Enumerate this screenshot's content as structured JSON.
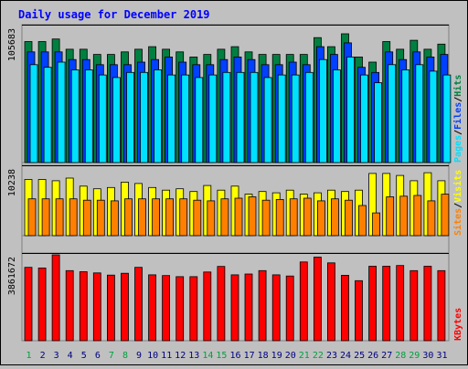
{
  "chart_data": {
    "type": "bar",
    "title": "Daily usage for December 2019",
    "categories": [
      "1",
      "2",
      "3",
      "4",
      "5",
      "6",
      "7",
      "8",
      "9",
      "10",
      "11",
      "12",
      "13",
      "14",
      "15",
      "16",
      "17",
      "18",
      "19",
      "20",
      "21",
      "22",
      "23",
      "24",
      "25",
      "26",
      "27",
      "28",
      "29",
      "30",
      "31"
    ],
    "weekend_days": [
      "1",
      "7",
      "8",
      "14",
      "15",
      "21",
      "22",
      "28",
      "29"
    ],
    "panels": [
      {
        "id": "top",
        "max_label": "105683",
        "ylim": [
          0,
          105683
        ],
        "legend": [
          "Pages",
          "/",
          "Files",
          "/",
          "Hits"
        ],
        "series": [
          {
            "name": "Hits",
            "color": "#008040",
            "values": [
              94000,
              94000,
              96000,
              88000,
              88000,
              84000,
              84000,
              86000,
              88000,
              90000,
              88000,
              86000,
              82000,
              84000,
              88000,
              90000,
              86000,
              84000,
              84000,
              84000,
              84000,
              97000,
              90000,
              100000,
              82000,
              78000,
              94000,
              88000,
              95000,
              88000,
              92000
            ]
          },
          {
            "name": "Files",
            "color": "#0040ff",
            "values": [
              86000,
              86000,
              86000,
              80000,
              80000,
              76000,
              76000,
              76000,
              78000,
              80000,
              82000,
              78000,
              76000,
              76000,
              80000,
              82000,
              80000,
              76000,
              76000,
              78000,
              76000,
              90000,
              84000,
              93000,
              74000,
              70000,
              86000,
              80000,
              86000,
              82000,
              84000
            ]
          },
          {
            "name": "Pages",
            "color": "#00e0ff",
            "values": [
              76000,
              74000,
              78000,
              72000,
              72000,
              68000,
              66000,
              70000,
              70000,
              72000,
              68000,
              68000,
              66000,
              68000,
              70000,
              70000,
              70000,
              66000,
              68000,
              68000,
              70000,
              80000,
              72000,
              82000,
              68000,
              62000,
              76000,
              72000,
              76000,
              71000,
              68000
            ]
          }
        ]
      },
      {
        "id": "middle",
        "max_label": "10238",
        "ylim": [
          0,
          10238
        ],
        "legend": [
          "Sites",
          "/",
          "Visits"
        ],
        "series": [
          {
            "name": "Visits",
            "color": "#ffff00",
            "values": [
              8400,
              8400,
              8200,
              8600,
              7400,
              7000,
              7200,
              8000,
              7800,
              7200,
              6800,
              7000,
              6600,
              7500,
              6800,
              7400,
              6200,
              6600,
              6400,
              6800,
              6200,
              6400,
              6800,
              6600,
              6800,
              9300,
              9300,
              9000,
              8200,
              9400,
              8200
            ]
          },
          {
            "name": "Sites",
            "color": "#ff8000",
            "values": [
              5500,
              5500,
              5500,
              5500,
              5300,
              5300,
              5200,
              5500,
              5500,
              5500,
              5500,
              5500,
              5300,
              5200,
              5500,
              5600,
              5800,
              5300,
              5400,
              5500,
              5600,
              5200,
              5500,
              5300,
              4500,
              3400,
              5800,
              5900,
              6000,
              5200,
              6200
            ]
          }
        ]
      },
      {
        "id": "bottom",
        "max_label": "3861672",
        "ylim": [
          0,
          3861672
        ],
        "legend": [
          "KBytes"
        ],
        "series": [
          {
            "name": "KBytes",
            "color": "#ff0000",
            "values": [
              3300000,
              3270000,
              3861672,
              3150000,
              3100000,
              3050000,
              2950000,
              3030000,
              3300000,
              2960000,
              2930000,
              2880000,
              2880000,
              3090000,
              3340000,
              2960000,
              3000000,
              3150000,
              2960000,
              2910000,
              3540000,
              3760000,
              3500000,
              2940000,
              2700000,
              3350000,
              3350000,
              3380000,
              3150000,
              3350000,
              3150000
            ]
          }
        ]
      }
    ]
  },
  "colors": {
    "background": "#c0c0c0",
    "title": "#0000ff",
    "weekday_label": "#000080",
    "weekend_label": "#00a040"
  }
}
